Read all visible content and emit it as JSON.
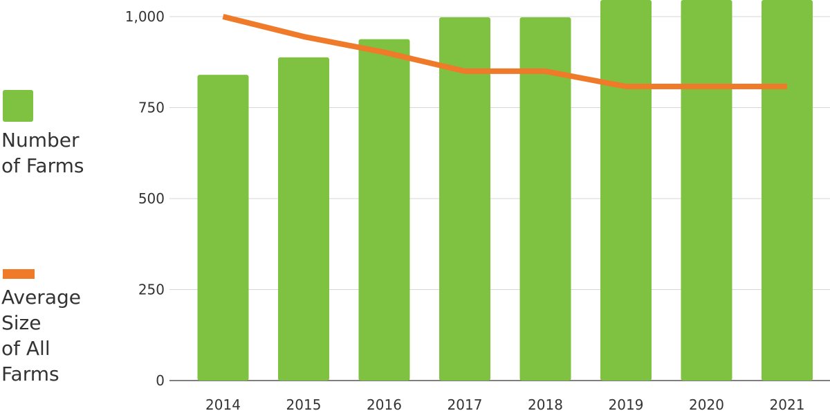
{
  "chart_data": {
    "type": "bar",
    "categories": [
      "2014",
      "2015",
      "2016",
      "2017",
      "2018",
      "2019",
      "2020",
      "2021"
    ],
    "series": [
      {
        "name": "Number\nof Farms",
        "type": "bar",
        "color": "#7fc241",
        "values": [
          840,
          888,
          938,
          998,
          998,
          1050,
          1050,
          1050
        ]
      },
      {
        "name": "Average\nSize\nof All\nFarms",
        "type": "line",
        "color": "#ee7a2a",
        "values": [
          1000,
          945,
          902,
          850,
          850,
          808,
          808,
          808
        ]
      }
    ],
    "y_ticks": [
      "0",
      "250",
      "500",
      "750",
      "1,000"
    ],
    "ylim": [
      0,
      1050
    ],
    "grid": "horizontal",
    "legend_position": "left"
  }
}
